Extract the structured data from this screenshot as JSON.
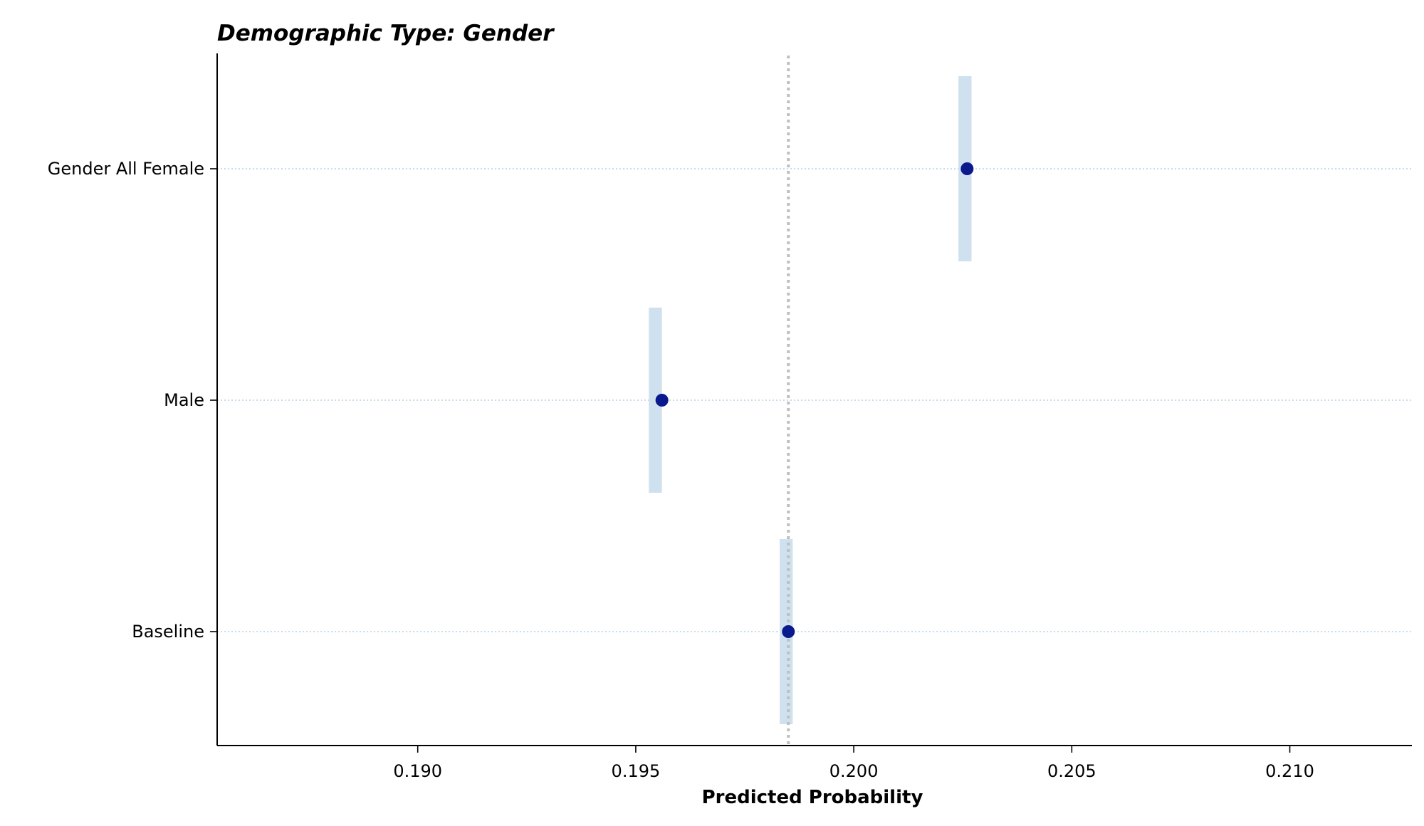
{
  "chart_data": {
    "type": "scatter",
    "title": "Demographic Type: Gender",
    "xlabel": "Predicted Probability",
    "ylabel": "",
    "xlim": [
      0.1854,
      0.2128
    ],
    "x_ticks": [
      0.19,
      0.195,
      0.2,
      0.205,
      0.21
    ],
    "x_tick_labels": [
      "0.190",
      "0.195",
      "0.200",
      "0.205",
      "0.210"
    ],
    "categories": [
      "Gender All Female",
      "Male",
      "Baseline"
    ],
    "series": [
      {
        "values": [
          0.2026,
          0.1956,
          0.1985
        ],
        "ci_low": [
          0.2024,
          0.1953,
          0.1983
        ],
        "ci_high": [
          0.2027,
          0.1956,
          0.1986
        ]
      }
    ],
    "reference_line_x": 0.1985,
    "grid": "horizontal dotted at categories",
    "legend": "none",
    "colors": {
      "point": "#0a1a8c",
      "interval": "#cfe1ef",
      "reference": "#bfbfbf",
      "grid": "#a9c8dc",
      "axis": "#000000"
    }
  }
}
